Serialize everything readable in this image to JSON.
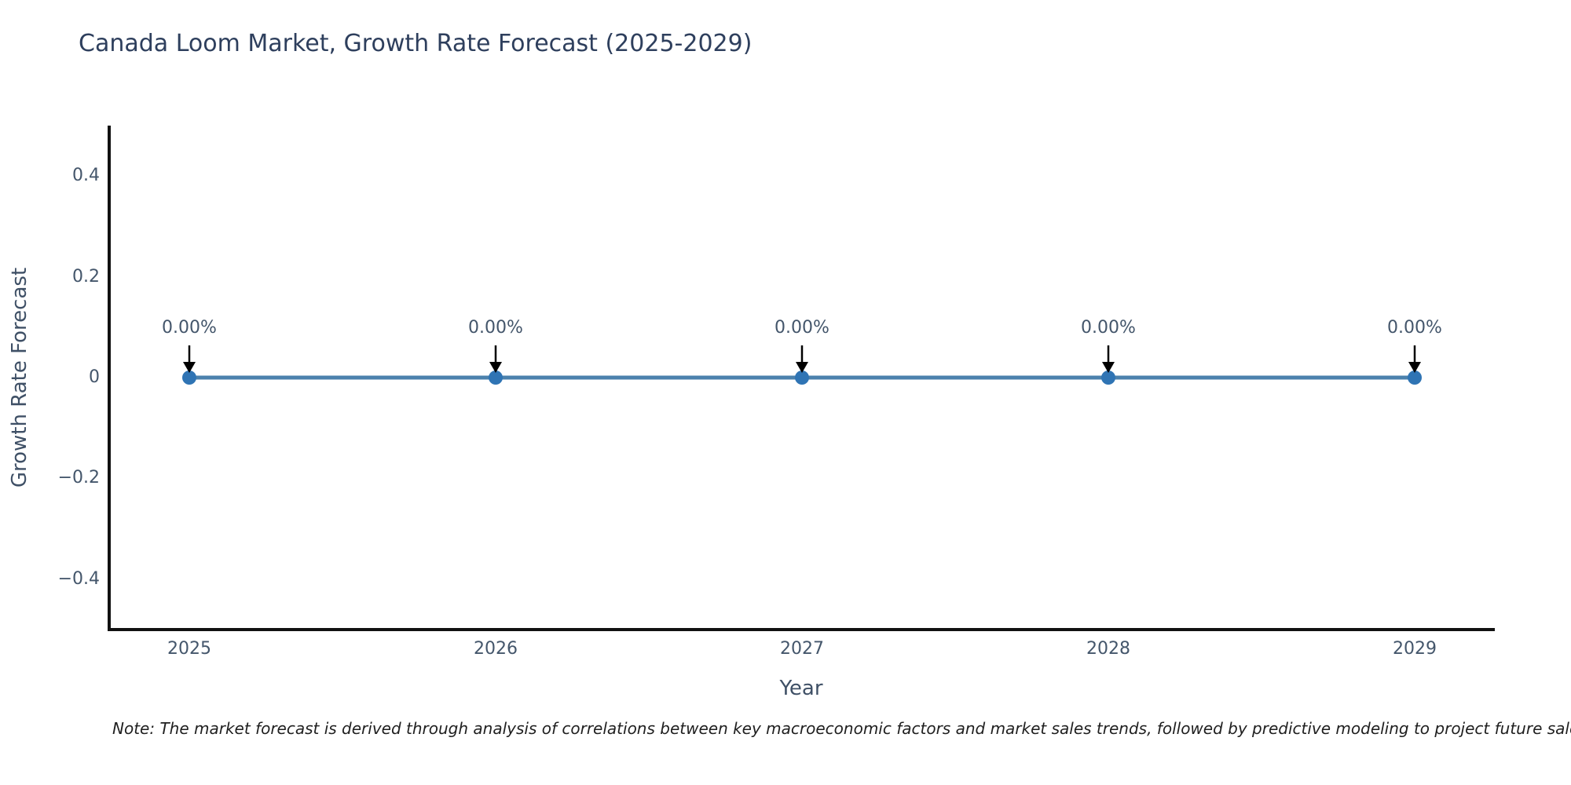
{
  "note": "Note: The market forecast is derived through analysis of correlations between key macroeconomic factors and market sales trends, followed by predictive modeling to project future sales",
  "chart_data": {
    "type": "line",
    "title": "Canada Loom Market, Growth Rate Forecast (2025-2029)",
    "categories": [
      "2025",
      "2026",
      "2027",
      "2028",
      "2029"
    ],
    "values": [
      0,
      0,
      0,
      0,
      0
    ],
    "point_labels": [
      "0.00%",
      "0.00%",
      "0.00%",
      "0.00%",
      "0.00%"
    ],
    "xlabel": "Year",
    "ylabel": "Growth Rate Forecast",
    "ylim": [
      -0.5,
      0.5
    ],
    "ytick_values": [
      0.4,
      0.2,
      0,
      -0.2,
      -0.4
    ],
    "ytick_labels": [
      "0.4",
      "0.2",
      "0",
      "−0.2",
      "−0.4"
    ],
    "grid": false,
    "legend_position": "none",
    "colors": {
      "line": "#4b81ad",
      "marker": "#2f74b4",
      "arrow": "#000000",
      "axis": "#111111",
      "tick_text": "#44566b",
      "title_text": "#2e3f5d",
      "note_text": "#1f1f1f",
      "background": "#ffffff"
    }
  }
}
